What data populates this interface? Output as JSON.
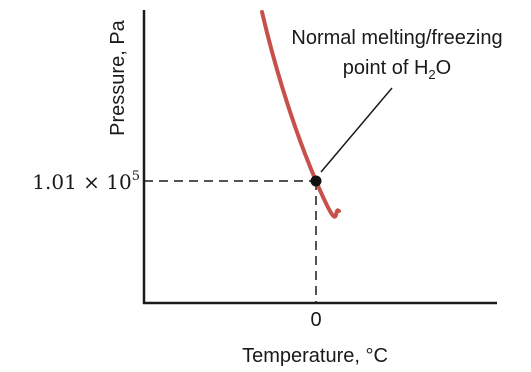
{
  "chart_data": {
    "type": "line",
    "title": "",
    "xlabel": "Temperature, °C",
    "ylabel": "Pressure, Pa",
    "x_ticks": [
      {
        "value": 0,
        "label": "0"
      }
    ],
    "y_ticks": [
      {
        "value": 101000,
        "label_mantissa": "1.01 × 10",
        "label_exponent": "5"
      }
    ],
    "series": [
      {
        "color": "#c8504a",
        "curve": "solid-liquid equilibrium line, negative slope",
        "points": [
          [
            -0.02,
            230000
          ],
          [
            0.0,
            101000
          ],
          [
            0.01,
            50000
          ]
        ]
      }
    ],
    "highlight_point": {
      "x": 0,
      "y": 101000,
      "annotation_line1": "Normal melting/freezing",
      "annotation_line2_prefix": "point of H",
      "annotation_line2_sub": "2",
      "annotation_line2_suffix": "O"
    },
    "guide_lines": "dashed",
    "grid": false,
    "legend": "none"
  }
}
